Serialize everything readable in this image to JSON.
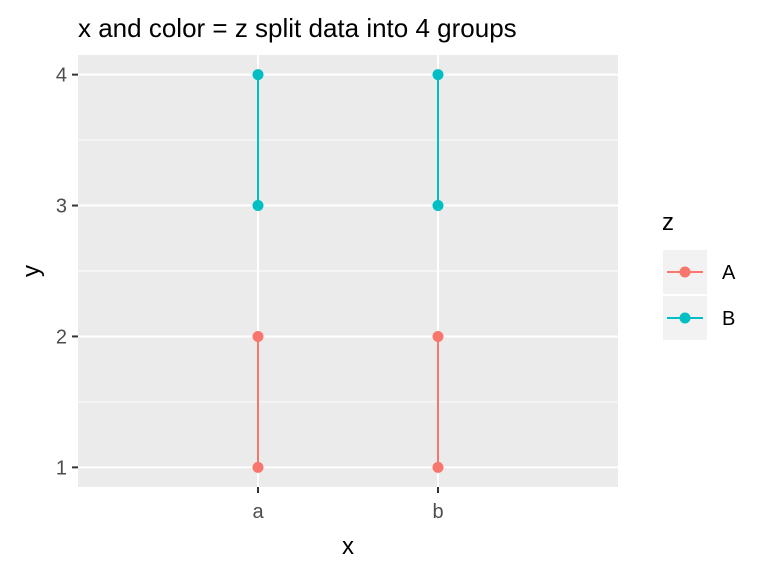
{
  "chart_data": {
    "type": "line",
    "title": "x and color = z split data into 4 groups",
    "xlabel": "x",
    "ylabel": "y",
    "categories": [
      "a",
      "b"
    ],
    "y_ticks": [
      "1",
      "2",
      "3",
      "4"
    ],
    "ylim": [
      0.85,
      4.15
    ],
    "grid": true,
    "legend_placement": "right",
    "legend_title": "z",
    "series": [
      {
        "name": "A",
        "color": "#F8766D",
        "groups": [
          {
            "x": "a",
            "y": [
              1,
              2
            ]
          },
          {
            "x": "b",
            "y": [
              1,
              2
            ]
          }
        ]
      },
      {
        "name": "B",
        "color": "#00BFC4",
        "groups": [
          {
            "x": "a",
            "y": [
              3,
              4
            ]
          },
          {
            "x": "b",
            "y": [
              3,
              4
            ]
          }
        ]
      }
    ],
    "panel_color": "#EBEBEB",
    "grid_color": "#FFFFFF"
  }
}
